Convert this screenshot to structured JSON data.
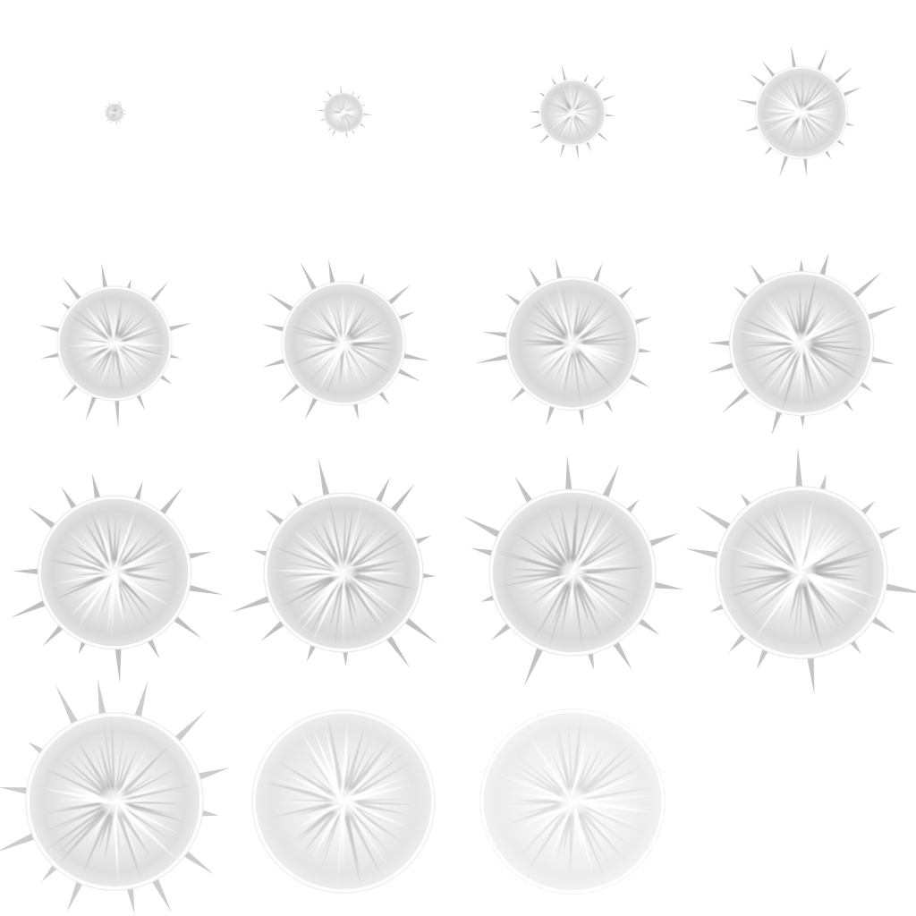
{
  "sprite_sheet": {
    "background_color": "#ffffff",
    "layout": {
      "columns": 4,
      "rows": 4,
      "frame_count": 15
    },
    "palette": {
      "disc_outer": "#d6d6d6",
      "disc_inner": "#f4f4f4",
      "ring": "#ffffff",
      "ray_dark": "#9a9a9a",
      "ray_light": "#ffffff",
      "spike": "#b5b5b5",
      "core": "#ffffff"
    },
    "frames": [
      {
        "index": 1,
        "scale": 0.1,
        "opacity": 1.0,
        "spikes": true
      },
      {
        "index": 2,
        "scale": 0.22,
        "opacity": 1.0,
        "spikes": true
      },
      {
        "index": 3,
        "scale": 0.36,
        "opacity": 1.0,
        "spikes": true
      },
      {
        "index": 4,
        "scale": 0.5,
        "opacity": 1.0,
        "spikes": true
      },
      {
        "index": 5,
        "scale": 0.62,
        "opacity": 1.0,
        "spikes": true
      },
      {
        "index": 6,
        "scale": 0.67,
        "opacity": 1.0,
        "spikes": true
      },
      {
        "index": 7,
        "scale": 0.72,
        "opacity": 1.0,
        "spikes": true
      },
      {
        "index": 8,
        "scale": 0.78,
        "opacity": 1.0,
        "spikes": true
      },
      {
        "index": 9,
        "scale": 0.83,
        "opacity": 1.0,
        "spikes": true
      },
      {
        "index": 10,
        "scale": 0.86,
        "opacity": 0.98,
        "spikes": true
      },
      {
        "index": 11,
        "scale": 0.9,
        "opacity": 0.95,
        "spikes": true
      },
      {
        "index": 12,
        "scale": 0.93,
        "opacity": 0.9,
        "spikes": true
      },
      {
        "index": 13,
        "scale": 0.96,
        "opacity": 0.8,
        "spikes": true
      },
      {
        "index": 14,
        "scale": 0.99,
        "opacity": 0.65,
        "spikes": false
      },
      {
        "index": 15,
        "scale": 1.0,
        "opacity": 0.45,
        "spikes": false
      }
    ]
  }
}
